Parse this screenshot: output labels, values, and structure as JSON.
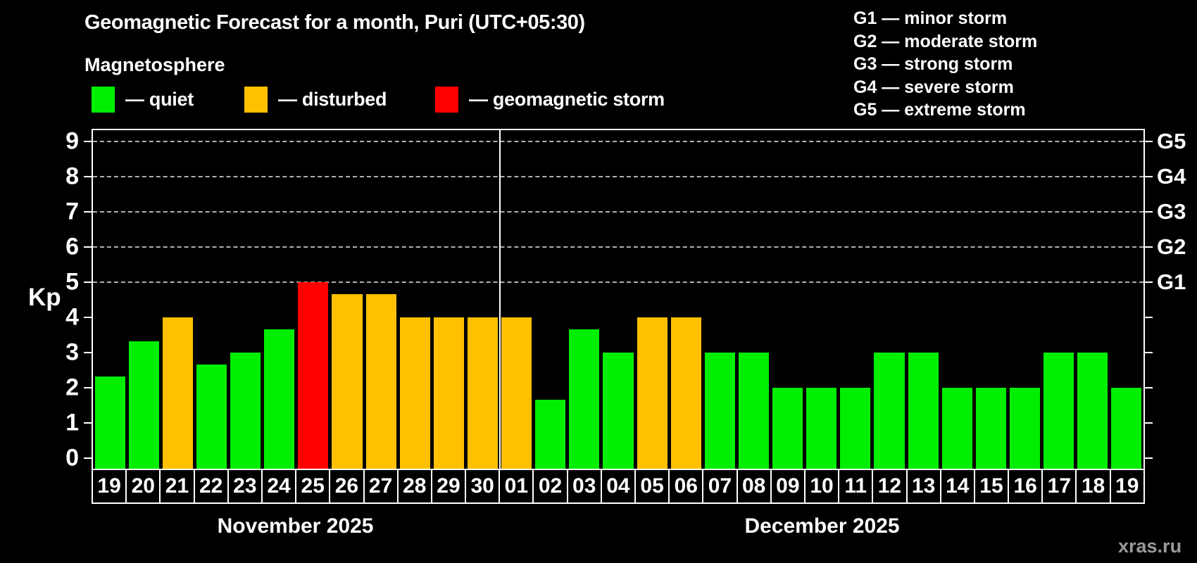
{
  "title": "Geomagnetic Forecast for a month, Puri (UTC+05:30)",
  "subtitle": "Magnetosphere",
  "magnetosphere_legend": [
    {
      "key": "quiet",
      "label": "— quiet",
      "color": "#00ee00"
    },
    {
      "key": "disturbed",
      "label": "— disturbed",
      "color": "#ffc000"
    },
    {
      "key": "storm",
      "label": "— geomagnetic storm",
      "color": "#ff0000"
    }
  ],
  "storm_scale_legend": [
    "G1 — minor storm",
    "G2 — moderate storm",
    "G3 — strong storm",
    "G4 — severe storm",
    "G5 — extreme storm"
  ],
  "watermark": "xras.ru",
  "chart_data": {
    "type": "bar",
    "ylabel": "Kp",
    "ylim": [
      0,
      9
    ],
    "yticks_left": [
      0,
      1,
      2,
      3,
      4,
      5,
      6,
      7,
      8,
      9
    ],
    "right_axis": [
      {
        "kp": 5,
        "label": "G1"
      },
      {
        "kp": 6,
        "label": "G2"
      },
      {
        "kp": 7,
        "label": "G3"
      },
      {
        "kp": 8,
        "label": "G4"
      },
      {
        "kp": 9,
        "label": "G5"
      }
    ],
    "gridlines_at_kp": [
      5,
      6,
      7,
      8,
      9
    ],
    "grid": "dashed horizontal lines at storm levels only",
    "legend_position": "top",
    "status_colors": {
      "quiet": "#00ee00",
      "disturbed": "#ffc000",
      "storm": "#ff0000"
    },
    "months": [
      {
        "label": "November 2025",
        "days": [
          {
            "day": "19",
            "kp": 2.33,
            "status": "quiet"
          },
          {
            "day": "20",
            "kp": 3.33,
            "status": "quiet"
          },
          {
            "day": "21",
            "kp": 4.0,
            "status": "disturbed"
          },
          {
            "day": "22",
            "kp": 2.67,
            "status": "quiet"
          },
          {
            "day": "23",
            "kp": 3.0,
            "status": "quiet"
          },
          {
            "day": "24",
            "kp": 3.67,
            "status": "quiet"
          },
          {
            "day": "25",
            "kp": 5.0,
            "status": "storm"
          },
          {
            "day": "26",
            "kp": 4.67,
            "status": "disturbed"
          },
          {
            "day": "27",
            "kp": 4.67,
            "status": "disturbed"
          },
          {
            "day": "28",
            "kp": 4.0,
            "status": "disturbed"
          },
          {
            "day": "29",
            "kp": 4.0,
            "status": "disturbed"
          },
          {
            "day": "30",
            "kp": 4.0,
            "status": "disturbed"
          }
        ]
      },
      {
        "label": "December 2025",
        "days": [
          {
            "day": "01",
            "kp": 4.0,
            "status": "disturbed"
          },
          {
            "day": "02",
            "kp": 1.67,
            "status": "quiet"
          },
          {
            "day": "03",
            "kp": 3.67,
            "status": "quiet"
          },
          {
            "day": "04",
            "kp": 3.0,
            "status": "quiet"
          },
          {
            "day": "05",
            "kp": 4.0,
            "status": "disturbed"
          },
          {
            "day": "06",
            "kp": 4.0,
            "status": "disturbed"
          },
          {
            "day": "07",
            "kp": 3.0,
            "status": "quiet"
          },
          {
            "day": "08",
            "kp": 3.0,
            "status": "quiet"
          },
          {
            "day": "09",
            "kp": 2.0,
            "status": "quiet"
          },
          {
            "day": "10",
            "kp": 2.0,
            "status": "quiet"
          },
          {
            "day": "11",
            "kp": 2.0,
            "status": "quiet"
          },
          {
            "day": "12",
            "kp": 3.0,
            "status": "quiet"
          },
          {
            "day": "13",
            "kp": 3.0,
            "status": "quiet"
          },
          {
            "day": "14",
            "kp": 2.0,
            "status": "quiet"
          },
          {
            "day": "15",
            "kp": 2.0,
            "status": "quiet"
          },
          {
            "day": "16",
            "kp": 2.0,
            "status": "quiet"
          },
          {
            "day": "17",
            "kp": 3.0,
            "status": "quiet"
          },
          {
            "day": "18",
            "kp": 3.0,
            "status": "quiet"
          },
          {
            "day": "19",
            "kp": 2.0,
            "status": "quiet"
          }
        ]
      }
    ]
  }
}
